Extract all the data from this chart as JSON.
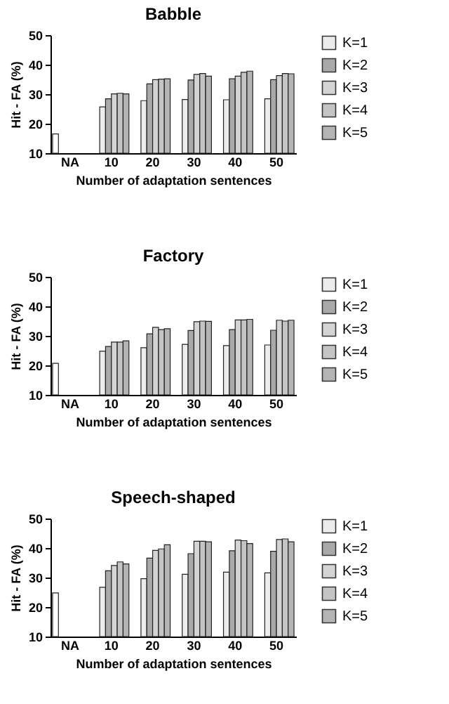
{
  "chart_data": [
    {
      "type": "bar",
      "title": "Babble",
      "xlabel": "Number of adaptation sentences",
      "ylabel": "Hit - FA (%)",
      "categories": [
        "NA",
        "10",
        "20",
        "30",
        "40",
        "50"
      ],
      "ylim": [
        10,
        50
      ],
      "yticks": [
        10,
        20,
        30,
        40,
        50
      ],
      "grid": false,
      "legend": "right",
      "series": [
        {
          "color": "#ffffff",
          "values": [
            16.5,
            null,
            null,
            null,
            null,
            null
          ]
        },
        {
          "name": "K=1",
          "color": "#ececec",
          "values": [
            null,
            25.7,
            27.8,
            28.2,
            28.1,
            28.4
          ]
        },
        {
          "name": "K=2",
          "color": "#a9a9a9",
          "values": [
            null,
            28.4,
            33.5,
            34.8,
            35.2,
            34.9
          ]
        },
        {
          "name": "K=3",
          "color": "#d4d4d4",
          "values": [
            null,
            30.1,
            34.9,
            36.7,
            36.1,
            36.3
          ]
        },
        {
          "name": "K=4",
          "color": "#c4c4c4",
          "values": [
            null,
            30.3,
            35.1,
            37.0,
            37.4,
            37.0
          ]
        },
        {
          "name": "K=5",
          "color": "#b4b4b4",
          "values": [
            null,
            30.1,
            35.2,
            36.1,
            37.8,
            36.9
          ]
        }
      ]
    },
    {
      "type": "bar",
      "title": "Factory",
      "xlabel": "Number of adaptation sentences",
      "ylabel": "Hit - FA (%)",
      "categories": [
        "NA",
        "10",
        "20",
        "30",
        "40",
        "50"
      ],
      "ylim": [
        10,
        50
      ],
      "yticks": [
        10,
        20,
        30,
        40,
        50
      ],
      "grid": false,
      "legend": "right",
      "series": [
        {
          "color": "#ffffff",
          "values": [
            20.7,
            null,
            null,
            null,
            null,
            null
          ]
        },
        {
          "name": "K=1",
          "color": "#ececec",
          "values": [
            null,
            24.8,
            26.0,
            27.1,
            26.7,
            26.9
          ]
        },
        {
          "name": "K=2",
          "color": "#a9a9a9",
          "values": [
            null,
            26.4,
            30.7,
            31.8,
            32.1,
            31.9
          ]
        },
        {
          "name": "K=3",
          "color": "#d4d4d4",
          "values": [
            null,
            27.9,
            32.9,
            34.8,
            35.4,
            35.3
          ]
        },
        {
          "name": "K=4",
          "color": "#c4c4c4",
          "values": [
            null,
            27.9,
            32.1,
            35.0,
            35.4,
            35.0
          ]
        },
        {
          "name": "K=5",
          "color": "#b4b4b4",
          "values": [
            null,
            28.3,
            32.4,
            34.9,
            35.6,
            35.3
          ]
        }
      ]
    },
    {
      "type": "bar",
      "title": "Speech-shaped",
      "xlabel": "Number of adaptation sentences",
      "ylabel": "Hit - FA (%)",
      "categories": [
        "NA",
        "10",
        "20",
        "30",
        "40",
        "50"
      ],
      "ylim": [
        10,
        50
      ],
      "yticks": [
        10,
        20,
        30,
        40,
        50
      ],
      "grid": false,
      "legend": "right",
      "series": [
        {
          "color": "#ffffff",
          "values": [
            24.8,
            null,
            null,
            null,
            null,
            null
          ]
        },
        {
          "name": "K=1",
          "color": "#ececec",
          "values": [
            null,
            26.7,
            29.6,
            31.1,
            31.8,
            31.6
          ]
        },
        {
          "name": "K=2",
          "color": "#a9a9a9",
          "values": [
            null,
            32.3,
            36.6,
            38.1,
            39.1,
            38.9
          ]
        },
        {
          "name": "K=3",
          "color": "#d4d4d4",
          "values": [
            null,
            34.1,
            39.2,
            42.3,
            42.7,
            42.9
          ]
        },
        {
          "name": "K=4",
          "color": "#c4c4c4",
          "values": [
            null,
            35.3,
            39.7,
            42.3,
            42.5,
            43.1
          ]
        },
        {
          "name": "K=5",
          "color": "#b4b4b4",
          "values": [
            null,
            34.6,
            41.1,
            42.1,
            41.5,
            42.1
          ]
        }
      ]
    }
  ]
}
